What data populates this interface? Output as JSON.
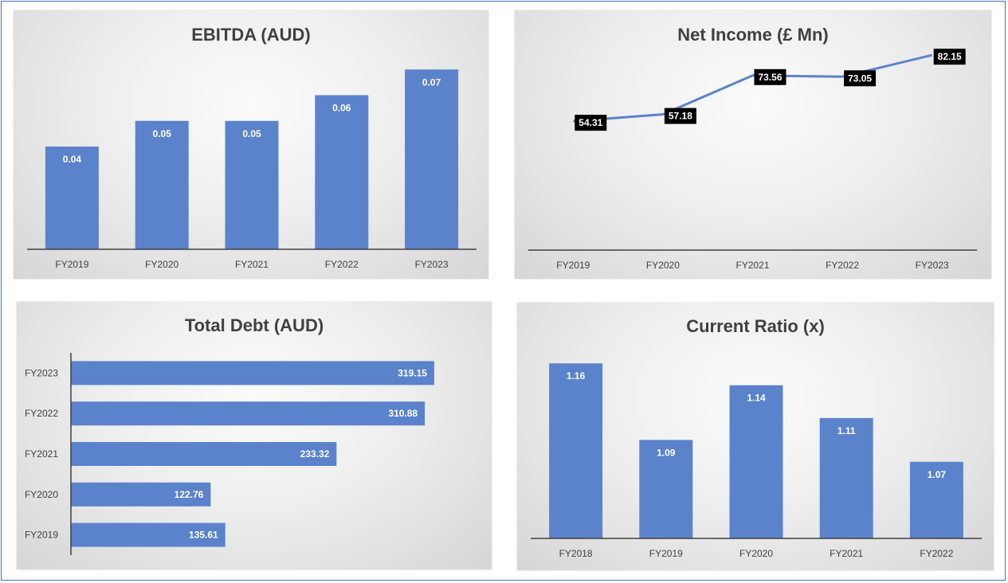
{
  "colors": {
    "bar": "#5b83cc",
    "line": "#5b83cc",
    "label_box": "#000000",
    "axis": "#404040"
  },
  "chart_data": [
    {
      "type": "bar",
      "title": "EBITDA (AUD)",
      "categories": [
        "FY2019",
        "FY2020",
        "FY2021",
        "FY2022",
        "FY2023"
      ],
      "values": [
        0.04,
        0.05,
        0.05,
        0.06,
        0.07
      ],
      "labels": [
        "0.04",
        "0.05",
        "0.05",
        "0.06",
        "0.07"
      ],
      "ylim": [
        0,
        0.08
      ],
      "grid": false
    },
    {
      "type": "line",
      "title": "Net Income (£ Mn)",
      "categories": [
        "FY2019",
        "FY2020",
        "FY2021",
        "FY2022",
        "FY2023"
      ],
      "values": [
        54.31,
        57.18,
        73.56,
        73.05,
        82.15
      ],
      "labels": [
        "54.31",
        "57.18",
        "73.56",
        "73.05",
        "82.15"
      ],
      "ylim": [
        0,
        100
      ],
      "grid": false
    },
    {
      "type": "bar",
      "orientation": "horizontal",
      "title": "Total Debt (AUD)",
      "categories": [
        "FY2023",
        "FY2022",
        "FY2021",
        "FY2020",
        "FY2019"
      ],
      "values": [
        319.15,
        310.88,
        233.32,
        122.76,
        135.61
      ],
      "labels": [
        "319.15",
        "310.88",
        "233.32",
        "122.76",
        "135.61"
      ],
      "xlim": [
        0,
        350
      ],
      "grid": false
    },
    {
      "type": "bar",
      "title": "Current Ratio (x)",
      "categories": [
        "FY2018",
        "FY2019",
        "FY2020",
        "FY2021",
        "FY2022"
      ],
      "values": [
        1.16,
        1.09,
        1.14,
        1.11,
        1.07
      ],
      "labels": [
        "1.16",
        "1.09",
        "1.14",
        "1.11",
        "1.07"
      ],
      "ylim": [
        1.0,
        1.19
      ],
      "grid": false
    }
  ]
}
